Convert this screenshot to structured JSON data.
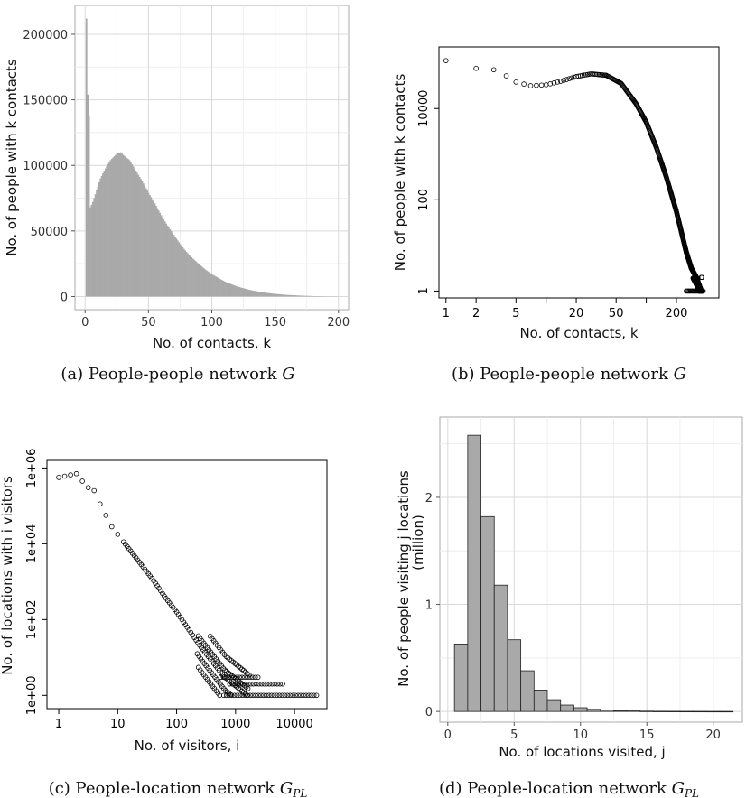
{
  "chart_data": [
    {
      "type": "bar",
      "panel": "a",
      "caption_prefix": "(a) People-people network ",
      "caption_math": "G",
      "caption_sub": "",
      "xlabel": "No. of contacts, k",
      "ylabel": "No. of people with k contacts",
      "xlim": [
        -8,
        208
      ],
      "ylim": [
        -10000,
        222000
      ],
      "xticks": [
        0,
        50,
        100,
        150,
        200
      ],
      "yticks": [
        0,
        50000,
        100000,
        150000,
        200000
      ],
      "ytick_labels": [
        "0",
        "50000",
        "100000",
        "150000",
        "200000"
      ],
      "grid": true,
      "curve_points": [
        [
          3,
          71000
        ],
        [
          4,
          68000
        ],
        [
          6,
          72000
        ],
        [
          8,
          78000
        ],
        [
          10,
          84000
        ],
        [
          12,
          90000
        ],
        [
          15,
          96000
        ],
        [
          18,
          101000
        ],
        [
          20,
          104000
        ],
        [
          25,
          109000
        ],
        [
          28,
          110000
        ],
        [
          30,
          108000
        ],
        [
          35,
          104000
        ],
        [
          40,
          96000
        ],
        [
          45,
          88000
        ],
        [
          50,
          79000
        ],
        [
          55,
          71000
        ],
        [
          60,
          62000
        ],
        [
          65,
          54000
        ],
        [
          70,
          47000
        ],
        [
          75,
          40000
        ],
        [
          80,
          34000
        ],
        [
          85,
          29000
        ],
        [
          90,
          24500
        ],
        [
          95,
          20500
        ],
        [
          100,
          17000
        ],
        [
          110,
          11500
        ],
        [
          120,
          7600
        ],
        [
          130,
          5000
        ],
        [
          140,
          3200
        ],
        [
          150,
          2000
        ],
        [
          160,
          1200
        ],
        [
          170,
          700
        ],
        [
          180,
          350
        ],
        [
          190,
          150
        ],
        [
          200,
          50
        ]
      ],
      "spike_values": [
        [
          1,
          212000
        ],
        [
          2,
          154000
        ],
        [
          3,
          138000
        ]
      ]
    },
    {
      "type": "scatter",
      "panel": "b",
      "caption_prefix": "(b) People-people network ",
      "caption_math": "G",
      "caption_sub": "",
      "xlabel": "No. of contacts, k",
      "ylabel": "No. of people with k contacts",
      "xscale": "log",
      "yscale": "log",
      "xlim_log10": [
        -0.07,
        2.725
      ],
      "ylim_log10": [
        -0.15,
        5.35
      ],
      "xticks": [
        1,
        2,
        5,
        20,
        50,
        200
      ],
      "xtick_labels": [
        "1",
        "2",
        "5",
        "20",
        "50",
        "200"
      ],
      "yticks": [
        1,
        100,
        10000
      ],
      "ytick_labels": [
        "1",
        "100",
        "10000"
      ],
      "grid": false,
      "curve_log10": [
        [
          0.0,
          5.05
        ],
        [
          0.301,
          4.88
        ],
        [
          0.477,
          4.85
        ],
        [
          0.6,
          4.72
        ],
        [
          0.699,
          4.58
        ],
        [
          0.845,
          4.5
        ],
        [
          1.0,
          4.52
        ],
        [
          1.15,
          4.6
        ],
        [
          1.3,
          4.7
        ],
        [
          1.45,
          4.76
        ],
        [
          1.6,
          4.73
        ],
        [
          1.75,
          4.55
        ],
        [
          1.9,
          4.1
        ],
        [
          2.0,
          3.7
        ],
        [
          2.1,
          3.15
        ],
        [
          2.2,
          2.5
        ],
        [
          2.3,
          1.75
        ],
        [
          2.35,
          1.3
        ],
        [
          2.4,
          0.85
        ],
        [
          2.45,
          0.5
        ],
        [
          2.5,
          0.3
        ],
        [
          2.55,
          0.0
        ]
      ],
      "marker": "open-circle"
    },
    {
      "type": "scatter",
      "panel": "c",
      "caption_prefix": "(c) People-location network ",
      "caption_math": "G",
      "caption_sub": "PL",
      "xlabel": "No. of visitors, i",
      "ylabel": "No. of locations with i visitors",
      "xscale": "log",
      "yscale": "log",
      "xlim_log10": [
        -0.2,
        4.55
      ],
      "ylim_log10": [
        -0.35,
        6.2
      ],
      "xticks": [
        1,
        10,
        100,
        1000,
        10000
      ],
      "xtick_labels": [
        "1",
        "10",
        "100",
        "1000",
        "10000"
      ],
      "yticks": [
        1,
        100,
        10000,
        1000000
      ],
      "ytick_labels": [
        "1e+00",
        "1e+02",
        "1e+04",
        "1e+06"
      ],
      "grid": false,
      "curve_log10": [
        [
          0.0,
          5.75
        ],
        [
          0.301,
          5.85
        ],
        [
          0.477,
          5.5
        ],
        [
          0.602,
          5.4
        ],
        [
          0.7,
          5.05
        ],
        [
          0.8,
          4.75
        ],
        [
          0.9,
          4.45
        ],
        [
          1.0,
          4.25
        ],
        [
          1.2,
          3.85
        ],
        [
          1.4,
          3.45
        ],
        [
          1.6,
          3.05
        ],
        [
          1.8,
          2.6
        ],
        [
          2.0,
          2.2
        ],
        [
          2.2,
          1.75
        ],
        [
          2.4,
          1.3
        ],
        [
          2.6,
          0.9
        ],
        [
          2.8,
          0.5
        ],
        [
          3.0,
          0.25
        ],
        [
          3.2,
          0.0
        ]
      ],
      "tail_rows_log10": [
        [
          0.0,
          2.8,
          4.4
        ],
        [
          0.301,
          2.9,
          3.8
        ],
        [
          0.477,
          2.75,
          3.4
        ]
      ],
      "marker": "open-circle"
    },
    {
      "type": "bar",
      "panel": "d",
      "caption_prefix": "(d) People-location network ",
      "caption_math": "G",
      "caption_sub": "PL",
      "xlabel": "No. of locations visited, j",
      "ylabel": "No. of people visiting j locations",
      "ylabel2": "(million)",
      "xlim": [
        -0.6,
        22.2
      ],
      "ylim": [
        -0.1,
        2.75
      ],
      "xticks": [
        0,
        5,
        10,
        15,
        20
      ],
      "yticks": [
        0,
        1,
        2
      ],
      "grid": true,
      "categories": [
        1,
        2,
        3,
        4,
        5,
        6,
        7,
        8,
        9,
        10,
        11,
        12,
        13,
        14,
        15,
        16,
        17,
        18,
        19,
        20,
        21
      ],
      "values": [
        0.63,
        2.58,
        1.82,
        1.18,
        0.67,
        0.38,
        0.2,
        0.11,
        0.06,
        0.035,
        0.02,
        0.012,
        0.008,
        0.005,
        0.003,
        0.002,
        0.0015,
        0.001,
        0.0008,
        0.0005,
        0.0003
      ]
    }
  ]
}
